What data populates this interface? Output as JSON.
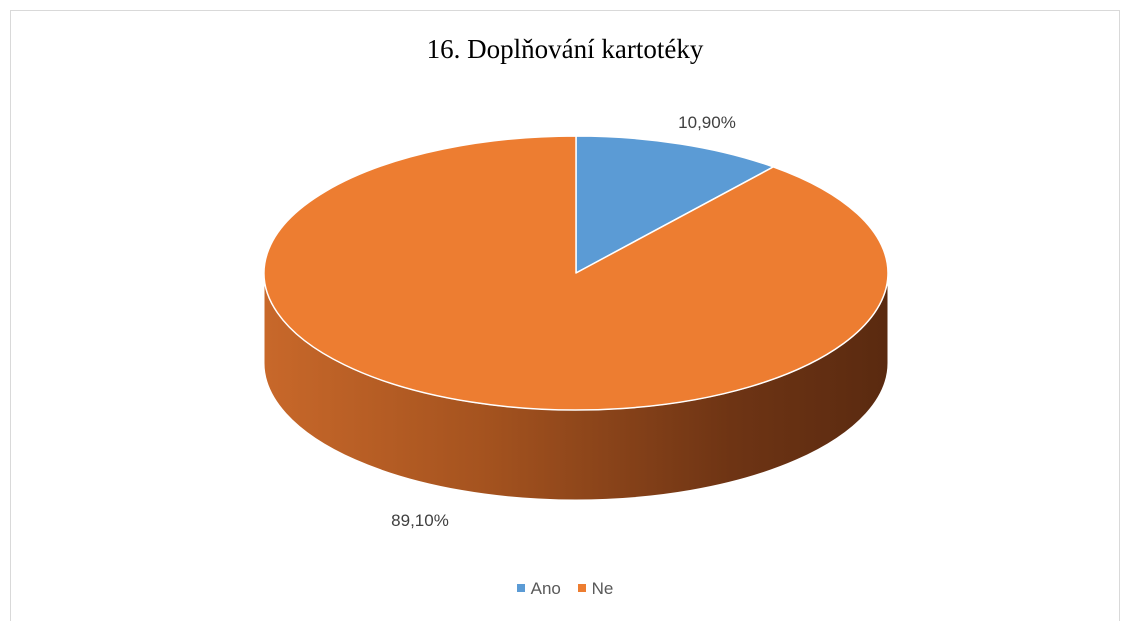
{
  "chart_data": {
    "type": "pie",
    "title": "16. Doplňování kartotéky",
    "categories": [
      "Ano",
      "Ne"
    ],
    "values": [
      10.9,
      89.1
    ],
    "data_labels": [
      "10,90%",
      "89,10%"
    ],
    "colors": [
      "#5b9bd5",
      "#ed7d31"
    ],
    "legend": "bottom",
    "style": "3d"
  }
}
